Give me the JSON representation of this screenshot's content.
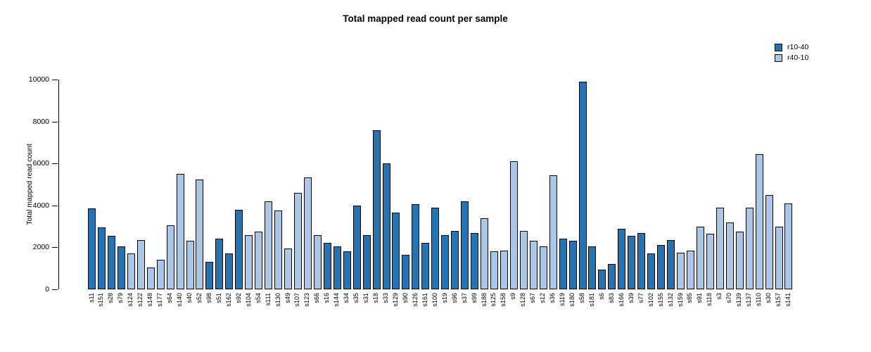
{
  "chart_data": {
    "type": "bar",
    "title": "Total mapped read count per sample",
    "xlabel": "",
    "ylabel": "Total mapped read count",
    "ylim": [
      0,
      10000
    ],
    "yticks": [
      0,
      2000,
      4000,
      6000,
      8000,
      10000
    ],
    "grid": false,
    "legend_position": "top-right",
    "legend": [
      {
        "name": "r10-40",
        "color": "#2274b4"
      },
      {
        "name": "r40-10",
        "color": "#aac7e8"
      }
    ],
    "bars": [
      {
        "sample": "s11",
        "value": 3850,
        "group": "r10-40"
      },
      {
        "sample": "s151",
        "value": 2950,
        "group": "r10-40"
      },
      {
        "sample": "s28",
        "value": 2550,
        "group": "r10-40"
      },
      {
        "sample": "s79",
        "value": 2050,
        "group": "r10-40"
      },
      {
        "sample": "s124",
        "value": 1700,
        "group": "r40-10"
      },
      {
        "sample": "s122",
        "value": 2350,
        "group": "r40-10"
      },
      {
        "sample": "s148",
        "value": 1050,
        "group": "r40-10"
      },
      {
        "sample": "s177",
        "value": 1400,
        "group": "r40-10"
      },
      {
        "sample": "s64",
        "value": 3050,
        "group": "r40-10"
      },
      {
        "sample": "s140",
        "value": 5500,
        "group": "r40-10"
      },
      {
        "sample": "s40",
        "value": 2300,
        "group": "r40-10"
      },
      {
        "sample": "s52",
        "value": 5250,
        "group": "r40-10"
      },
      {
        "sample": "s98",
        "value": 1300,
        "group": "r10-40"
      },
      {
        "sample": "s51",
        "value": 2400,
        "group": "r10-40"
      },
      {
        "sample": "s162",
        "value": 1700,
        "group": "r10-40"
      },
      {
        "sample": "s92",
        "value": 3800,
        "group": "r10-40"
      },
      {
        "sample": "s104",
        "value": 2600,
        "group": "r40-10"
      },
      {
        "sample": "s54",
        "value": 2750,
        "group": "r40-10"
      },
      {
        "sample": "s111",
        "value": 4200,
        "group": "r40-10"
      },
      {
        "sample": "s130",
        "value": 3750,
        "group": "r40-10"
      },
      {
        "sample": "s49",
        "value": 1950,
        "group": "r40-10"
      },
      {
        "sample": "s107",
        "value": 4600,
        "group": "r40-10"
      },
      {
        "sample": "s123",
        "value": 5350,
        "group": "r40-10"
      },
      {
        "sample": "s66",
        "value": 2600,
        "group": "r40-10"
      },
      {
        "sample": "s16",
        "value": 2200,
        "group": "r10-40"
      },
      {
        "sample": "s144",
        "value": 2050,
        "group": "r10-40"
      },
      {
        "sample": "s34",
        "value": 1800,
        "group": "r10-40"
      },
      {
        "sample": "s35",
        "value": 4000,
        "group": "r10-40"
      },
      {
        "sample": "s31",
        "value": 2600,
        "group": "r10-40"
      },
      {
        "sample": "s18",
        "value": 7600,
        "group": "r10-40"
      },
      {
        "sample": "s33",
        "value": 6000,
        "group": "r10-40"
      },
      {
        "sample": "s129",
        "value": 3650,
        "group": "r10-40"
      },
      {
        "sample": "s90",
        "value": 1650,
        "group": "r10-40"
      },
      {
        "sample": "s126",
        "value": 4050,
        "group": "r10-40"
      },
      {
        "sample": "s161",
        "value": 2200,
        "group": "r10-40"
      },
      {
        "sample": "s100",
        "value": 3900,
        "group": "r10-40"
      },
      {
        "sample": "s19",
        "value": 2600,
        "group": "r10-40"
      },
      {
        "sample": "s96",
        "value": 2800,
        "group": "r10-40"
      },
      {
        "sample": "s37",
        "value": 4200,
        "group": "r10-40"
      },
      {
        "sample": "s99",
        "value": 2700,
        "group": "r10-40"
      },
      {
        "sample": "s188",
        "value": 3400,
        "group": "r40-10"
      },
      {
        "sample": "s125",
        "value": 1800,
        "group": "r40-10"
      },
      {
        "sample": "s158",
        "value": 1850,
        "group": "r40-10"
      },
      {
        "sample": "s9",
        "value": 6100,
        "group": "r40-10"
      },
      {
        "sample": "s128",
        "value": 2800,
        "group": "r40-10"
      },
      {
        "sample": "s67",
        "value": 2300,
        "group": "r40-10"
      },
      {
        "sample": "s12",
        "value": 2050,
        "group": "r40-10"
      },
      {
        "sample": "s36",
        "value": 5450,
        "group": "r40-10"
      },
      {
        "sample": "s119",
        "value": 2400,
        "group": "r10-40"
      },
      {
        "sample": "s180",
        "value": 2300,
        "group": "r10-40"
      },
      {
        "sample": "s58",
        "value": 9900,
        "group": "r10-40"
      },
      {
        "sample": "s181",
        "value": 2050,
        "group": "r10-40"
      },
      {
        "sample": "s6",
        "value": 950,
        "group": "r10-40"
      },
      {
        "sample": "s83",
        "value": 1200,
        "group": "r10-40"
      },
      {
        "sample": "s166",
        "value": 2900,
        "group": "r10-40"
      },
      {
        "sample": "s39",
        "value": 2550,
        "group": "r10-40"
      },
      {
        "sample": "s77",
        "value": 2700,
        "group": "r10-40"
      },
      {
        "sample": "s102",
        "value": 1700,
        "group": "r10-40"
      },
      {
        "sample": "s155",
        "value": 2100,
        "group": "r10-40"
      },
      {
        "sample": "s132",
        "value": 2350,
        "group": "r10-40"
      },
      {
        "sample": "s159",
        "value": 1750,
        "group": "r40-10"
      },
      {
        "sample": "s85",
        "value": 1850,
        "group": "r40-10"
      },
      {
        "sample": "s91",
        "value": 3000,
        "group": "r40-10"
      },
      {
        "sample": "s118",
        "value": 2650,
        "group": "r40-10"
      },
      {
        "sample": "s3",
        "value": 3900,
        "group": "r40-10"
      },
      {
        "sample": "s70",
        "value": 3200,
        "group": "r40-10"
      },
      {
        "sample": "s139",
        "value": 2750,
        "group": "r40-10"
      },
      {
        "sample": "s137",
        "value": 3900,
        "group": "r40-10"
      },
      {
        "sample": "s110",
        "value": 6450,
        "group": "r40-10"
      },
      {
        "sample": "s30",
        "value": 4500,
        "group": "r40-10"
      },
      {
        "sample": "s157",
        "value": 3000,
        "group": "r40-10"
      },
      {
        "sample": "s141",
        "value": 4100,
        "group": "r40-10"
      }
    ]
  }
}
